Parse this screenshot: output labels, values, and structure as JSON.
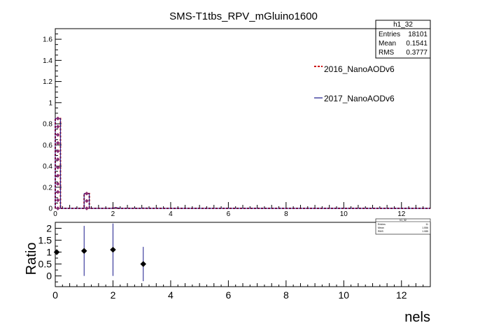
{
  "title": "SMS-T1tbs_RPV_mGluino1600",
  "stats_main": {
    "name": "h1_32",
    "rows": [
      {
        "label": "Entries",
        "value": "18101"
      },
      {
        "label": "Mean",
        "value": "0.1541"
      },
      {
        "label": "RMS",
        "value": "0.3777"
      }
    ]
  },
  "stats_ratio": {
    "name": "h1_32",
    "rows": [
      {
        "label": "Entries",
        "value": "11"
      },
      {
        "label": "Mean",
        "value": "1.556"
      },
      {
        "label": "RMS",
        "value": "1.085"
      }
    ]
  },
  "colors": {
    "series_2016": "#cc0000",
    "series_2017": "#1a1a8c",
    "overlap": "#8a2b73",
    "ratio_err": "#1a1a8c"
  },
  "chart_data": [
    {
      "type": "line",
      "title": "SMS-T1tbs_RPV_mGluino1600",
      "x_range": [
        0,
        13
      ],
      "ylim": [
        0,
        1.7
      ],
      "x_ticks": [
        "0",
        "2",
        "4",
        "6",
        "8",
        "10",
        "12"
      ],
      "y_ticks": [
        "0",
        "0.2",
        "0.4",
        "0.6",
        "0.8",
        "1",
        "1.2",
        "1.4",
        "1.6"
      ],
      "legend": [
        {
          "name": "2016_NanoAODv6"
        },
        {
          "name": "2017_NanoAODv6"
        }
      ],
      "bins": [
        {
          "x": 0,
          "y": 0.85
        },
        {
          "x": 1,
          "y": 0.14
        },
        {
          "x": 2,
          "y": 0.005
        },
        {
          "x": 3,
          "y": 0.0005
        }
      ]
    },
    {
      "type": "scatter",
      "xlabel": "nels",
      "ylabel": "Ratio",
      "x_range": [
        0,
        13
      ],
      "ylim": [
        -0.45,
        2.25
      ],
      "x_ticks": [
        "0",
        "2",
        "4",
        "6",
        "8",
        "10",
        "12"
      ],
      "y_ticks": [
        "0",
        "0.5",
        "1",
        "1.5",
        "2"
      ],
      "points": [
        {
          "x": 0.05,
          "y": 1.0,
          "err": 0.01
        },
        {
          "x": 1.0,
          "y": 1.05,
          "err": 1.05
        },
        {
          "x": 2.0,
          "y": 1.1,
          "err": 1.1
        },
        {
          "x": 3.05,
          "y": 0.5,
          "err": 0.72
        }
      ]
    }
  ]
}
